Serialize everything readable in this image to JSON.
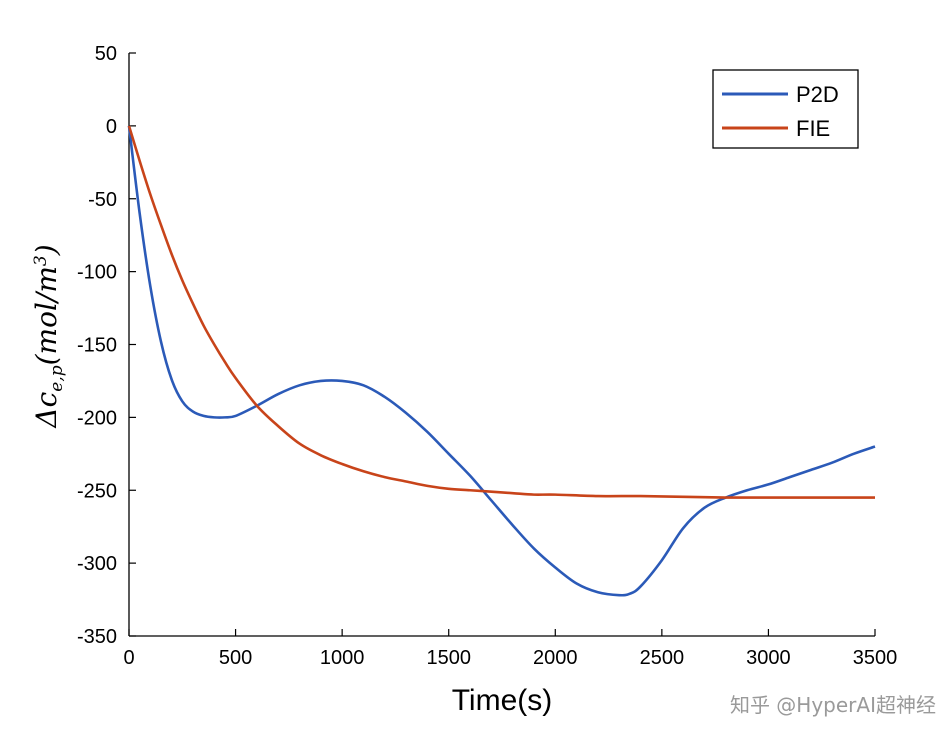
{
  "chart_data": {
    "type": "line",
    "xlabel": "Time(s)",
    "ylabel": "Δc_{e,p}(mol/m^3)",
    "xlim": [
      0,
      3500
    ],
    "ylim": [
      -350,
      50
    ],
    "xticks": [
      0,
      500,
      1000,
      1500,
      2000,
      2500,
      3000,
      3500
    ],
    "yticks": [
      50,
      0,
      -50,
      -100,
      -150,
      -200,
      -250,
      -300,
      -350
    ],
    "grid": false,
    "legend_position": "top-right",
    "series": [
      {
        "name": "P2D",
        "color": "#2b5ab8",
        "x": [
          0,
          50,
          100,
          150,
          200,
          250,
          300,
          350,
          400,
          450,
          500,
          600,
          700,
          800,
          900,
          1000,
          1100,
          1200,
          1300,
          1400,
          1500,
          1600,
          1700,
          1800,
          1900,
          2000,
          2100,
          2200,
          2300,
          2350,
          2400,
          2500,
          2600,
          2700,
          2800,
          2900,
          3000,
          3100,
          3200,
          3300,
          3400,
          3500
        ],
        "y": [
          0,
          -60,
          -110,
          -148,
          -174,
          -189,
          -196,
          -199,
          -200,
          -200,
          -199,
          -192,
          -184,
          -178,
          -175,
          -175,
          -178,
          -186,
          -197,
          -210,
          -225,
          -240,
          -257,
          -274,
          -290,
          -303,
          -314,
          -320,
          -322,
          -321,
          -316,
          -298,
          -276,
          -262,
          -255,
          -250,
          -246,
          -241,
          -236,
          -231,
          -225,
          -220
        ]
      },
      {
        "name": "FIE",
        "color": "#c8441a",
        "x": [
          0,
          50,
          100,
          150,
          200,
          250,
          300,
          350,
          400,
          450,
          500,
          600,
          700,
          800,
          900,
          1000,
          1100,
          1200,
          1300,
          1400,
          1500,
          1600,
          1700,
          1800,
          1900,
          2000,
          2200,
          2400,
          2600,
          2800,
          3000,
          3200,
          3500
        ],
        "y": [
          0,
          -24,
          -47,
          -68,
          -88,
          -106,
          -122,
          -137,
          -150,
          -162,
          -173,
          -192,
          -206,
          -218,
          -226,
          -232,
          -237,
          -241,
          -244,
          -247,
          -249,
          -250,
          -251,
          -252,
          -253,
          -253,
          -254,
          -254,
          -254.5,
          -255,
          -255,
          -255,
          -255
        ]
      }
    ]
  },
  "watermark": "知乎 @HyperAI超神经"
}
